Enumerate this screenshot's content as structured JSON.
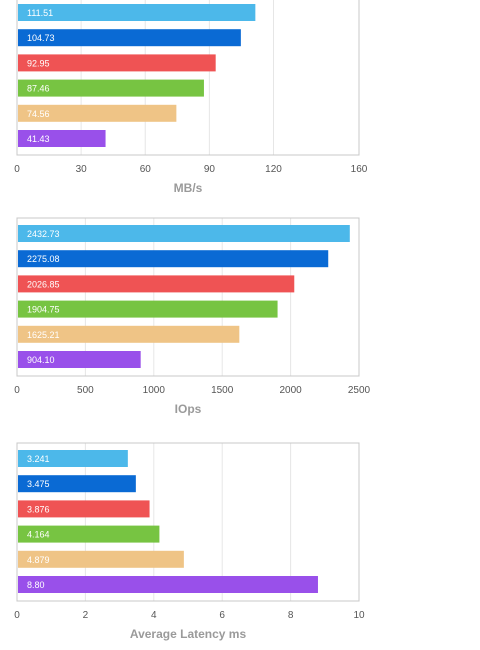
{
  "chart_data": [
    {
      "type": "bar",
      "orientation": "horizontal",
      "xlabel": "MB/s",
      "xlim": [
        0,
        160
      ],
      "ticks": [
        "0",
        "30",
        "60",
        "90",
        "120",
        "160"
      ],
      "tick_values": [
        0,
        30,
        60,
        90,
        120,
        160
      ],
      "values": [
        111.51,
        104.73,
        92.95,
        87.46,
        74.56,
        41.43
      ],
      "labels": [
        "111.51",
        "104.73",
        "92.95",
        "87.46",
        "74.56",
        "41.43"
      ],
      "colors": [
        "#4cb8ea",
        "#0a6ad4",
        "#ef5354",
        "#77c442",
        "#efc486",
        "#9950ea"
      ],
      "grid": true
    },
    {
      "type": "bar",
      "orientation": "horizontal",
      "xlabel": "IOps",
      "xlim": [
        0,
        2500
      ],
      "ticks": [
        "0",
        "500",
        "1000",
        "1500",
        "2000",
        "2500"
      ],
      "tick_values": [
        0,
        500,
        1000,
        1500,
        2000,
        2500
      ],
      "values": [
        2432.73,
        2275.08,
        2026.85,
        1904.75,
        1625.21,
        904.1
      ],
      "labels": [
        "2432.73",
        "2275.08",
        "2026.85",
        "1904.75",
        "1625.21",
        "904.10"
      ],
      "colors": [
        "#4cb8ea",
        "#0a6ad4",
        "#ef5354",
        "#77c442",
        "#efc486",
        "#9950ea"
      ],
      "grid": true
    },
    {
      "type": "bar",
      "orientation": "horizontal",
      "xlabel": "Average Latency ms",
      "xlim": [
        0,
        10
      ],
      "ticks": [
        "0",
        "2",
        "4",
        "6",
        "8",
        "10"
      ],
      "tick_values": [
        0,
        2,
        4,
        6,
        8,
        10
      ],
      "values": [
        3.241,
        3.475,
        3.876,
        4.164,
        4.879,
        8.8
      ],
      "labels": [
        "3.241",
        "3.475",
        "3.876",
        "4.164",
        "4.879",
        "8.80"
      ],
      "colors": [
        "#4cb8ea",
        "#0a6ad4",
        "#ef5354",
        "#77c442",
        "#efc486",
        "#9950ea"
      ],
      "grid": true
    }
  ]
}
